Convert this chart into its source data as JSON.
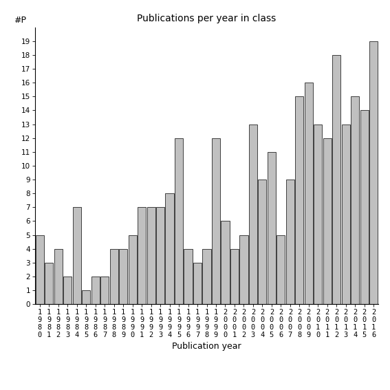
{
  "title": "Publications per year in class",
  "xlabel": "Publication year",
  "ylabel": "#P",
  "years": [
    1980,
    1981,
    1982,
    1983,
    1984,
    1985,
    1986,
    1987,
    1988,
    1989,
    1990,
    1991,
    1992,
    1993,
    1994,
    1995,
    1996,
    1997,
    1998,
    1999,
    2000,
    2001,
    2002,
    2003,
    2004,
    2005,
    2006,
    2007,
    2008,
    2009,
    2010,
    2011,
    2012,
    2013,
    2014,
    2015,
    2016
  ],
  "values": [
    5,
    3,
    4,
    2,
    7,
    1,
    2,
    2,
    4,
    4,
    5,
    7,
    7,
    7,
    8,
    12,
    4,
    3,
    4,
    12,
    6,
    4,
    5,
    13,
    9,
    11,
    5,
    9,
    15,
    16,
    13,
    12,
    18,
    13,
    15,
    14,
    19
  ],
  "bar_color": "#c0c0c0",
  "bar_edgecolor": "#000000",
  "ylim": [
    0,
    20
  ],
  "yticks": [
    0,
    1,
    2,
    3,
    4,
    5,
    6,
    7,
    8,
    9,
    10,
    11,
    12,
    13,
    14,
    15,
    16,
    17,
    18,
    19
  ],
  "background_color": "#ffffff",
  "title_fontsize": 10,
  "axis_fontsize": 9,
  "tick_fontsize": 7.5
}
